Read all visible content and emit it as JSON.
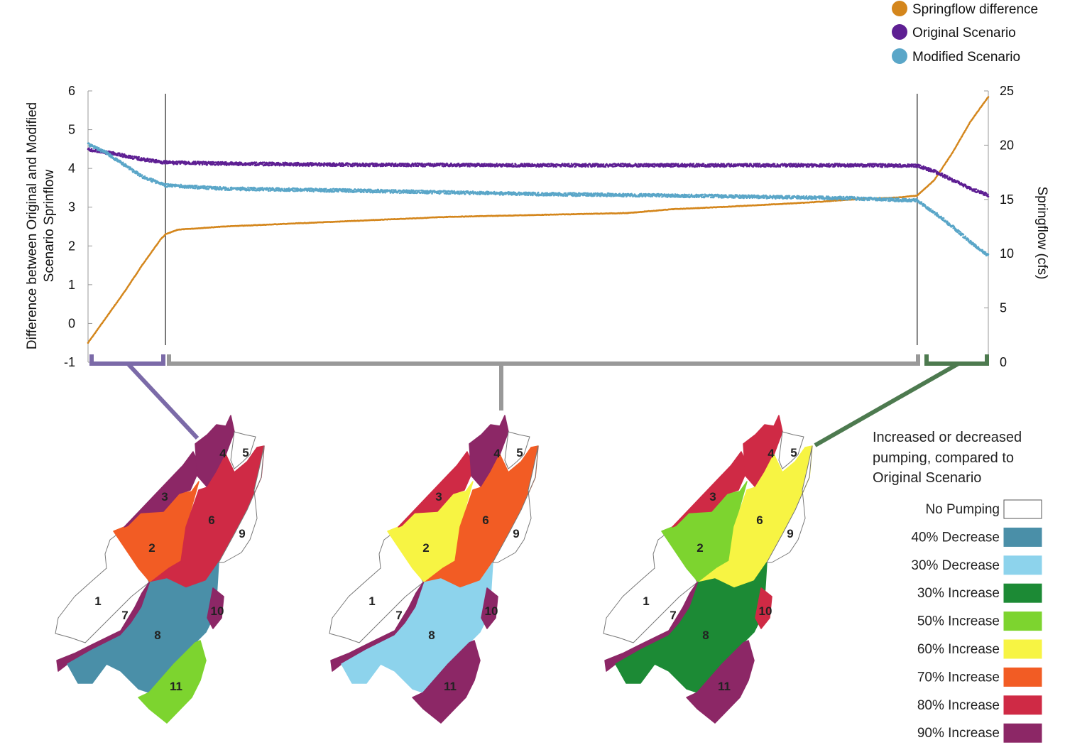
{
  "chart_data": {
    "type": "scatter",
    "legend": {
      "position": "top-right",
      "items": [
        {
          "name": "Springflow difference",
          "color": "#d4861c"
        },
        {
          "name": "Original Scenario",
          "color": "#5e1f93"
        },
        {
          "name": "Modified Scenario",
          "color": "#5aa6c8"
        }
      ]
    },
    "y_left": {
      "label_lines": [
        "Difference between Original and Modified",
        "Scenario Sprinflow"
      ],
      "range": [
        -1,
        6
      ],
      "ticks": [
        "6",
        "5",
        "4",
        "3",
        "2",
        "1",
        "0",
        "-1"
      ]
    },
    "y_right": {
      "label": "Springflow (cfs)",
      "range": [
        0,
        25
      ],
      "ticks": [
        "25",
        "20",
        "15",
        "10",
        "5",
        "0"
      ]
    },
    "x_range": [
      0,
      100
    ],
    "period_dividers": [
      8.6,
      92.1
    ],
    "series": [
      {
        "name": "Springflow difference",
        "axis": "left",
        "color": "#d4861c",
        "points": [
          [
            0,
            -0.5
          ],
          [
            2,
            0.15
          ],
          [
            4,
            0.8
          ],
          [
            6,
            1.5
          ],
          [
            8,
            2.15
          ],
          [
            8.6,
            2.3
          ],
          [
            10,
            2.42
          ],
          [
            15,
            2.5
          ],
          [
            20,
            2.55
          ],
          [
            30,
            2.65
          ],
          [
            40,
            2.75
          ],
          [
            50,
            2.8
          ],
          [
            60,
            2.85
          ],
          [
            65,
            2.95
          ],
          [
            70,
            3.0
          ],
          [
            80,
            3.12
          ],
          [
            85,
            3.2
          ],
          [
            90,
            3.25
          ],
          [
            92.1,
            3.3
          ],
          [
            94,
            3.7
          ],
          [
            96,
            4.4
          ],
          [
            98,
            5.2
          ],
          [
            100,
            5.85
          ]
        ]
      },
      {
        "name": "Original Scenario",
        "axis": "right",
        "color": "#5e1f93",
        "points": [
          [
            0,
            19.6
          ],
          [
            3,
            19.2
          ],
          [
            6,
            18.7
          ],
          [
            8.6,
            18.4
          ],
          [
            15,
            18.3
          ],
          [
            30,
            18.2
          ],
          [
            50,
            18.15
          ],
          [
            70,
            18.15
          ],
          [
            85,
            18.15
          ],
          [
            92.1,
            18.1
          ],
          [
            94,
            17.6
          ],
          [
            96,
            16.8
          ],
          [
            98,
            16.0
          ],
          [
            100,
            15.4
          ]
        ]
      },
      {
        "name": "Modified Scenario",
        "axis": "right",
        "color": "#5aa6c8",
        "points": [
          [
            0,
            20.1
          ],
          [
            2,
            19.3
          ],
          [
            4,
            18.2
          ],
          [
            6,
            17.1
          ],
          [
            8.6,
            16.3
          ],
          [
            15,
            16.0
          ],
          [
            30,
            15.8
          ],
          [
            50,
            15.5
          ],
          [
            70,
            15.3
          ],
          [
            85,
            15.1
          ],
          [
            92.1,
            14.9
          ],
          [
            94,
            13.8
          ],
          [
            96,
            12.5
          ],
          [
            98,
            11.1
          ],
          [
            100,
            9.8
          ]
        ]
      }
    ],
    "maps": {
      "legend_title_lines": [
        "Increased or decreased",
        "pumping, compared to",
        "Original Scenario"
      ],
      "categories": [
        {
          "label": "No Pumping",
          "color": "#ffffff"
        },
        {
          "label": "40% Decrease",
          "color": "#4a8fa8"
        },
        {
          "label": "30% Decrease",
          "color": "#8dd3ec"
        },
        {
          "label": "30% Increase",
          "color": "#1c8a35"
        },
        {
          "label": "50% Increase",
          "color": "#7dd42f"
        },
        {
          "label": "60% Increase",
          "color": "#f7f443"
        },
        {
          "label": "70% Increase",
          "color": "#f25c24"
        },
        {
          "label": "80% Increase",
          "color": "#cf2a45"
        },
        {
          "label": "90% Increase",
          "color": "#8c2766"
        }
      ],
      "zone_labels": [
        "1",
        "2",
        "3",
        "4",
        "5",
        "6",
        "7",
        "8",
        "9",
        "10",
        "11"
      ],
      "panels": [
        {
          "zones": {
            "1": "No Pumping",
            "2": "70% Increase",
            "3": "90% Increase",
            "4": "90% Increase",
            "5": "No Pumping",
            "6": "80% Increase",
            "7": "90% Increase",
            "8": "40% Decrease",
            "9": "No Pumping",
            "10": "90% Increase",
            "11": "50% Increase"
          }
        },
        {
          "zones": {
            "1": "No Pumping",
            "2": "60% Increase",
            "3": "80% Increase",
            "4": "90% Increase",
            "5": "No Pumping",
            "6": "70% Increase",
            "7": "90% Increase",
            "8": "30% Decrease",
            "9": "No Pumping",
            "10": "90% Increase",
            "11": "90% Increase"
          }
        },
        {
          "zones": {
            "1": "No Pumping",
            "2": "50% Increase",
            "3": "80% Increase",
            "4": "80% Increase",
            "5": "No Pumping",
            "6": "60% Increase",
            "7": "90% Increase",
            "8": "30% Increase",
            "9": "No Pumping",
            "10": "80% Increase",
            "11": "90% Increase"
          }
        }
      ]
    }
  }
}
